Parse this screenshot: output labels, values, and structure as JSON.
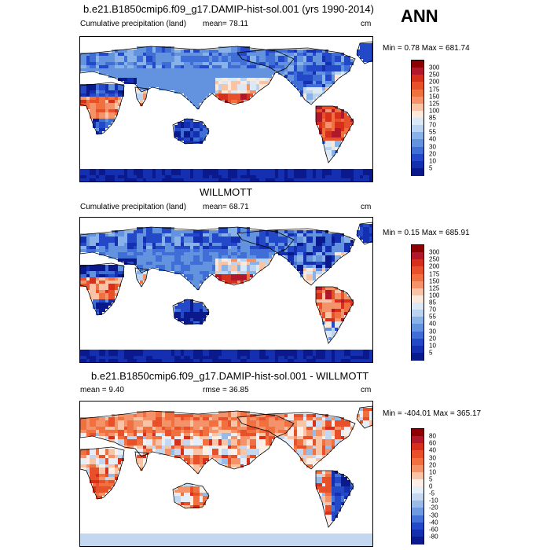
{
  "season": "ANN",
  "panels": [
    {
      "title": "b.e21.B1850cmip6.f09_g17.DAMIP-hist-sol.001 (yrs 1990-2014)",
      "left_label": "Cumulative precipitation (land)",
      "stat_label": "mean=  78.11",
      "units": "cm",
      "minmax": "Min =   0.78 Max = 681.74",
      "levels": [
        "300",
        "250",
        "200",
        "175",
        "150",
        "125",
        "100",
        "85",
        "70",
        "55",
        "40",
        "30",
        "20",
        "10",
        "5"
      ],
      "colors": [
        "#8b0000",
        "#b2182b",
        "#d6301d",
        "#e8502a",
        "#f07040",
        "#f4926a",
        "#f9c4a6",
        "#fde9dc",
        "#dbe8f6",
        "#b9d3f0",
        "#89b3e8",
        "#6393df",
        "#3f6fd6",
        "#2449c8",
        "#1430b0",
        "#0a1a8c"
      ]
    },
    {
      "title": "WILLMOTT",
      "left_label": "Cumulative precipitation (land)",
      "stat_label": "mean=  68.71",
      "units": "cm",
      "minmax": "Min =   0.15 Max = 685.91",
      "levels": [
        "300",
        "250",
        "200",
        "175",
        "150",
        "125",
        "100",
        "85",
        "70",
        "55",
        "40",
        "30",
        "20",
        "10",
        "5"
      ],
      "colors": [
        "#8b0000",
        "#b2182b",
        "#d6301d",
        "#e8502a",
        "#f07040",
        "#f4926a",
        "#f9c4a6",
        "#fde9dc",
        "#dbe8f6",
        "#b9d3f0",
        "#89b3e8",
        "#6393df",
        "#3f6fd6",
        "#2449c8",
        "#1430b0",
        "#0a1a8c"
      ]
    },
    {
      "title": "b.e21.B1850cmip6.f09_g17.DAMIP-hist-sol.001 - WILLMOTT",
      "left_label": "mean =   9.40",
      "stat_label": "rmse =   36.85",
      "units": "cm",
      "minmax": "Min = -404.01 Max = 365.17",
      "levels": [
        "80",
        "60",
        "40",
        "30",
        "20",
        "10",
        "5",
        "0",
        "-5",
        "-10",
        "-20",
        "-30",
        "-40",
        "-60",
        "-80"
      ],
      "colors": [
        "#8b0000",
        "#b2182b",
        "#d6301d",
        "#e8502a",
        "#f07040",
        "#f4926a",
        "#f9c4a6",
        "#fdeee6",
        "#e6eef9",
        "#c3d7f0",
        "#98bbe8",
        "#6e9be0",
        "#4373d6",
        "#2449c8",
        "#1430b0",
        "#0a1a8c"
      ]
    }
  ]
}
